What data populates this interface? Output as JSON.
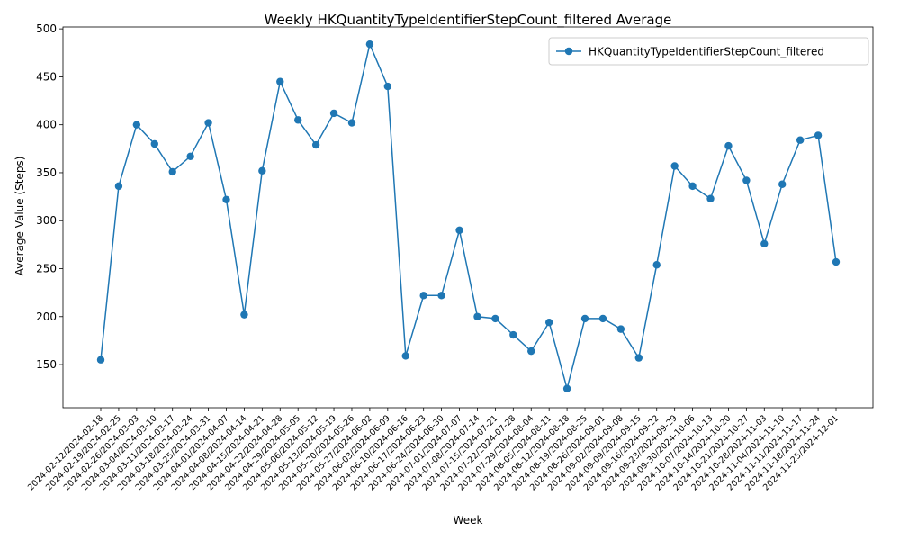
{
  "chart_data": {
    "type": "line",
    "title": "Weekly HKQuantityTypeIdentifierStepCount_filtered Average",
    "xlabel": "Week",
    "ylabel": "Average Value (Steps)",
    "ylim": [
      105,
      502
    ],
    "yticks": [
      150,
      200,
      250,
      300,
      350,
      400,
      450,
      500
    ],
    "grid": false,
    "legend_position": "top-right",
    "categories": [
      "2024-02-12/2024-02-18",
      "2024-02-19/2024-02-25",
      "2024-02-26/2024-03-03",
      "2024-03-04/2024-03-10",
      "2024-03-11/2024-03-17",
      "2024-03-18/2024-03-24",
      "2024-03-25/2024-03-31",
      "2024-04-01/2024-04-07",
      "2024-04-08/2024-04-14",
      "2024-04-15/2024-04-21",
      "2024-04-22/2024-04-28",
      "2024-04-29/2024-05-05",
      "2024-05-06/2024-05-12",
      "2024-05-13/2024-05-19",
      "2024-05-20/2024-05-26",
      "2024-05-27/2024-06-02",
      "2024-06-03/2024-06-09",
      "2024-06-10/2024-06-16",
      "2024-06-17/2024-06-23",
      "2024-06-24/2024-06-30",
      "2024-07-01/2024-07-07",
      "2024-07-08/2024-07-14",
      "2024-07-15/2024-07-21",
      "2024-07-22/2024-07-28",
      "2024-07-29/2024-08-04",
      "2024-08-05/2024-08-11",
      "2024-08-12/2024-08-18",
      "2024-08-19/2024-08-25",
      "2024-08-26/2024-09-01",
      "2024-09-02/2024-09-08",
      "2024-09-09/2024-09-15",
      "2024-09-16/2024-09-22",
      "2024-09-23/2024-09-29",
      "2024-09-30/2024-10-06",
      "2024-10-07/2024-10-13",
      "2024-10-14/2024-10-20",
      "2024-10-21/2024-10-27",
      "2024-10-28/2024-11-03",
      "2024-11-04/2024-11-10",
      "2024-11-11/2024-11-17",
      "2024-11-18/2024-11-24",
      "2024-11-25/2024-12-01"
    ],
    "series": [
      {
        "name": "HKQuantityTypeIdentifierStepCount_filtered",
        "color": "#1f77b4",
        "values": [
          155,
          336,
          400,
          380,
          351,
          367,
          402,
          322,
          202,
          352,
          445,
          405,
          379,
          412,
          402,
          484,
          440,
          159,
          222,
          222,
          290,
          200,
          198,
          181,
          164,
          194,
          125,
          198,
          198,
          187,
          157,
          254,
          357,
          336,
          323,
          378,
          342,
          276,
          338,
          384,
          389,
          257
        ]
      }
    ]
  }
}
